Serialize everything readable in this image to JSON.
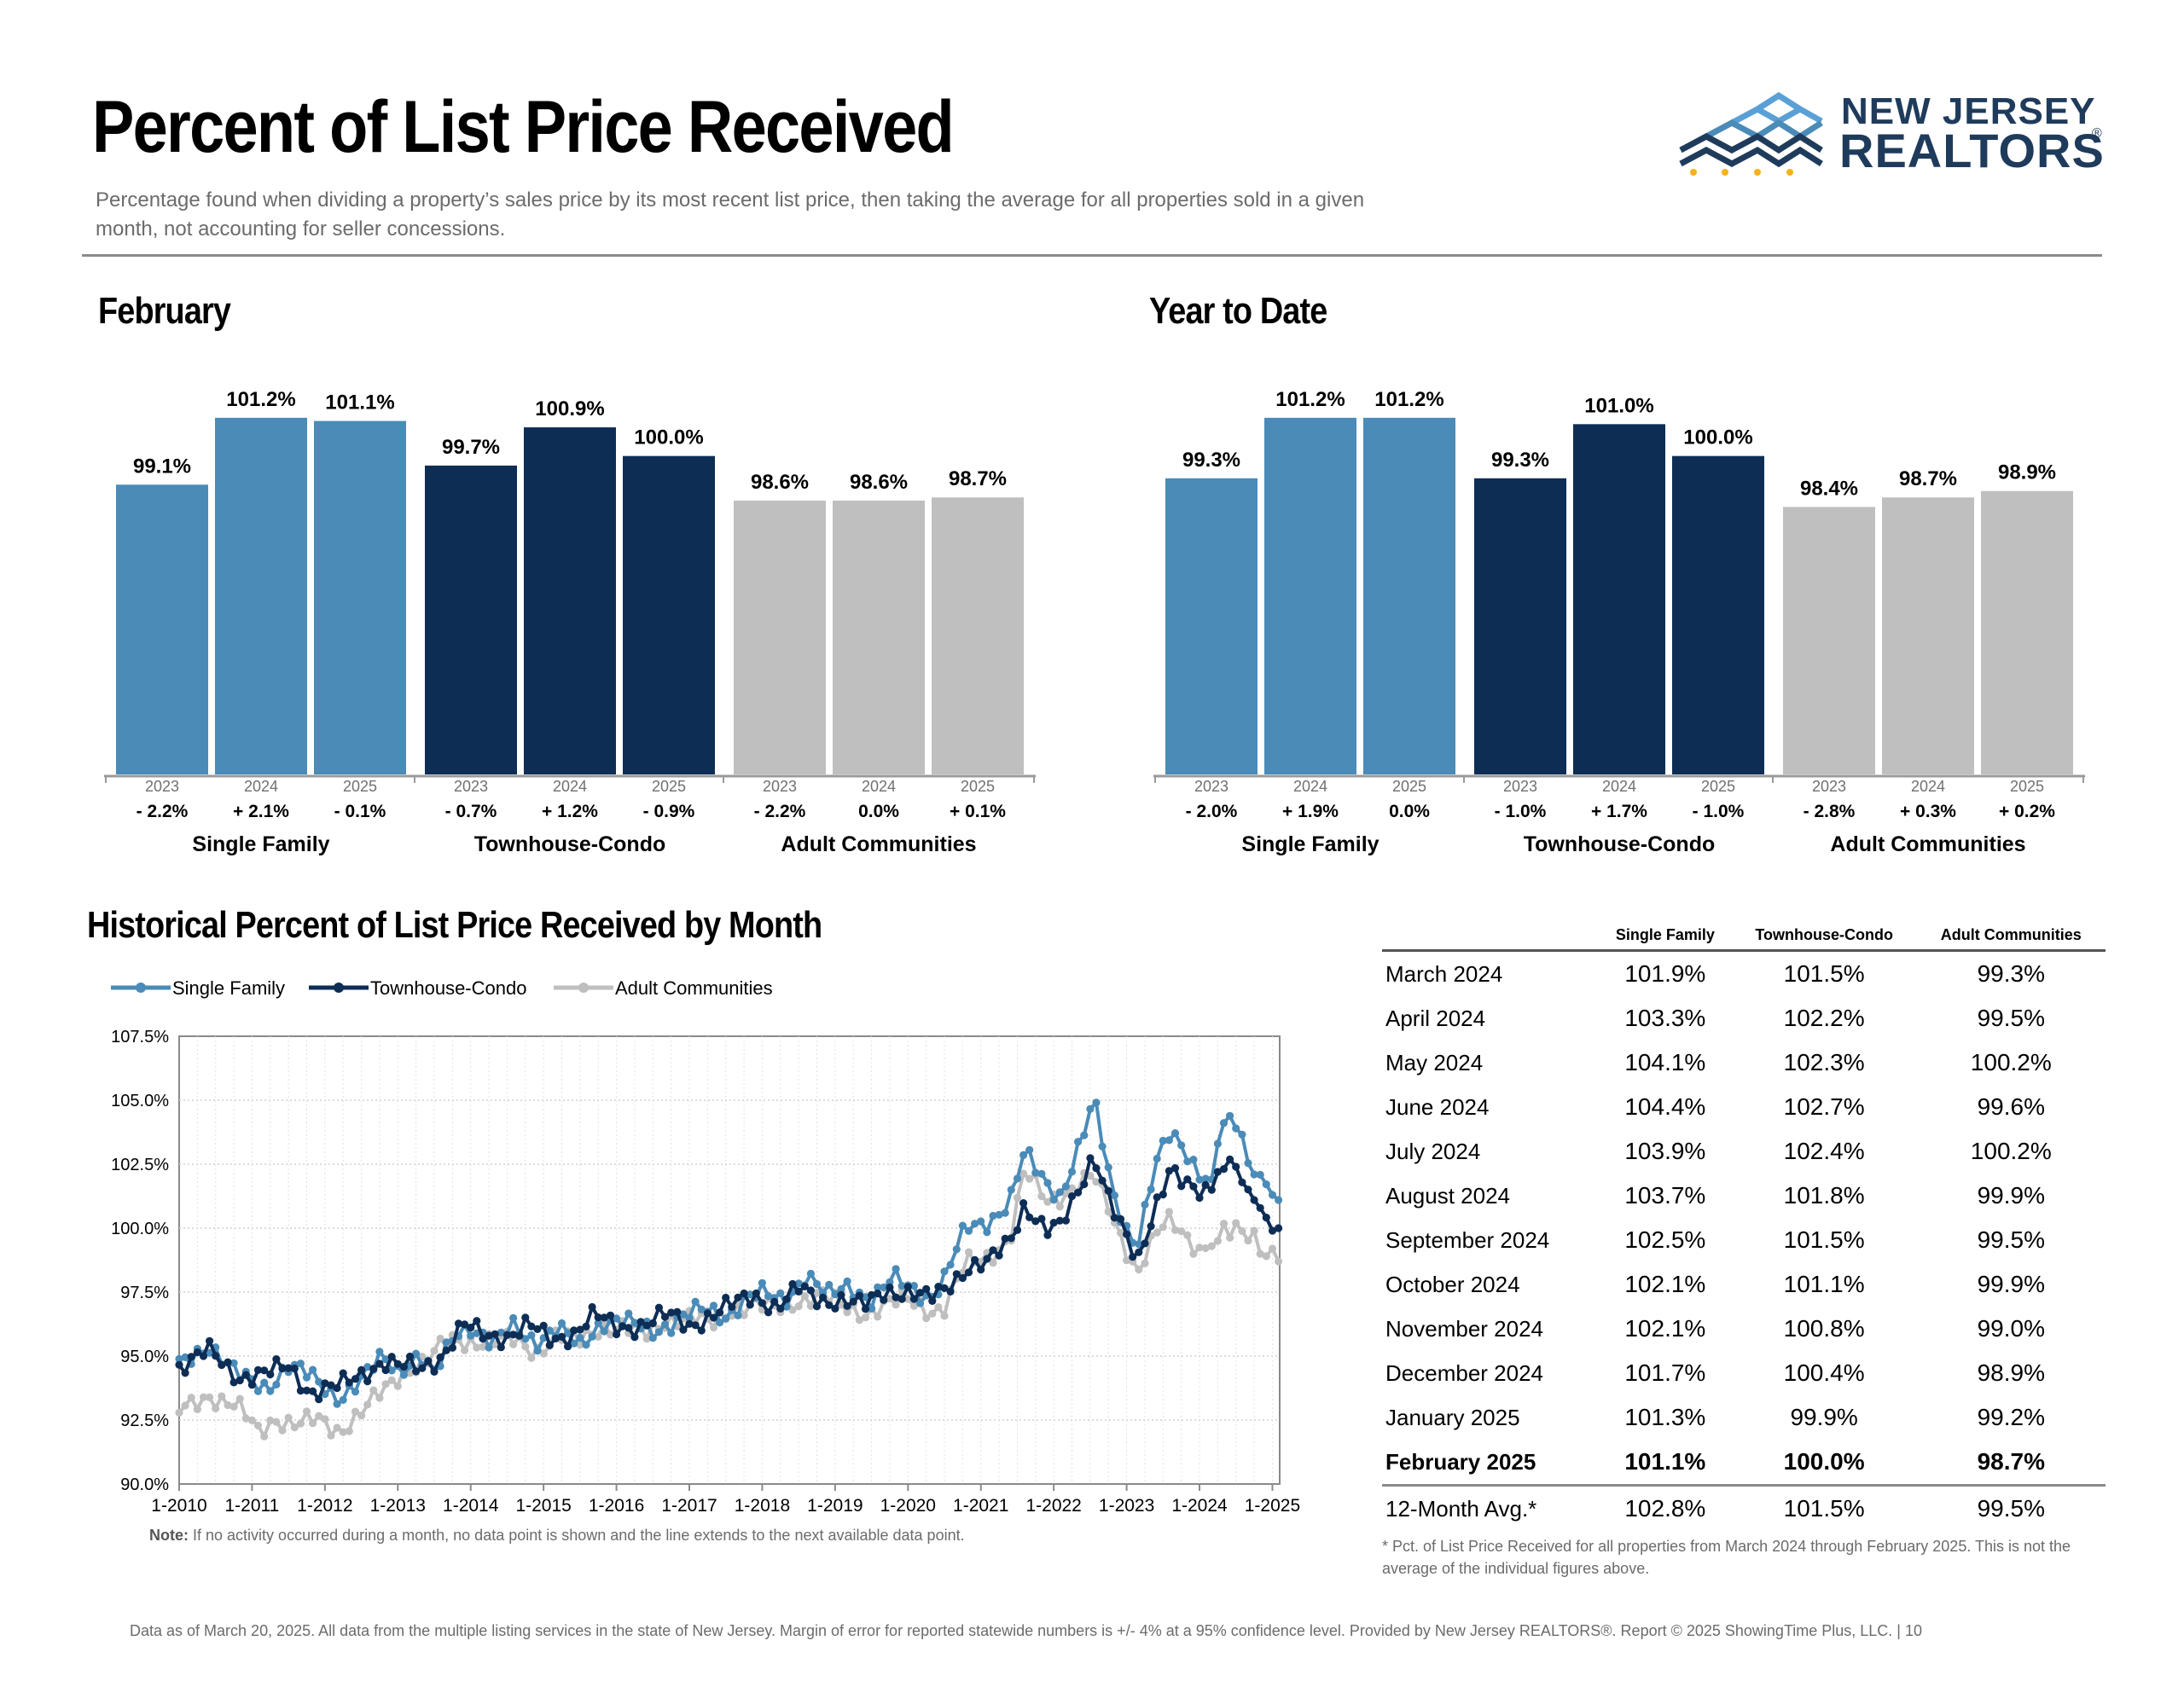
{
  "header": {
    "title": "Percent of List Price Received",
    "subtitle": "Percentage found when dividing a property’s sales price by its most recent list price, then taking the average for all properties sold in a given month, not accounting for seller concessions.",
    "logo_line1": "NEW JERSEY",
    "logo_line2": "REALTORS",
    "logo_reg": "®"
  },
  "colors": {
    "single_family": "#4a8bb8",
    "townhouse_condo": "#0d2d55",
    "adult_communities": "#bfbfbf"
  },
  "sections": {
    "february": "February",
    "ytd": "Year to Date",
    "historical": "Historical Percent of List Price Received by Month"
  },
  "chart_data": [
    {
      "type": "bar",
      "title": "February",
      "ylim": [
        90,
        102
      ],
      "groups": [
        {
          "name": "Single Family",
          "years": [
            "2023",
            "2024",
            "2025"
          ],
          "values": [
            99.1,
            101.2,
            101.1
          ],
          "labels": [
            "99.1%",
            "101.2%",
            "101.1%"
          ],
          "changes": [
            "- 2.2%",
            "+ 2.1%",
            "- 0.1%"
          ]
        },
        {
          "name": "Townhouse-Condo",
          "years": [
            "2023",
            "2024",
            "2025"
          ],
          "values": [
            99.7,
            100.9,
            100.0
          ],
          "labels": [
            "99.7%",
            "100.9%",
            "100.0%"
          ],
          "changes": [
            "- 0.7%",
            "+ 1.2%",
            "- 0.9%"
          ]
        },
        {
          "name": "Adult Communities",
          "years": [
            "2023",
            "2024",
            "2025"
          ],
          "values": [
            98.6,
            98.6,
            98.7
          ],
          "labels": [
            "98.6%",
            "98.6%",
            "98.7%"
          ],
          "changes": [
            "- 2.2%",
            "0.0%",
            "+ 0.1%"
          ]
        }
      ]
    },
    {
      "type": "bar",
      "title": "Year to Date",
      "ylim": [
        90,
        102
      ],
      "groups": [
        {
          "name": "Single Family",
          "years": [
            "2023",
            "2024",
            "2025"
          ],
          "values": [
            99.3,
            101.2,
            101.2
          ],
          "labels": [
            "99.3%",
            "101.2%",
            "101.2%"
          ],
          "changes": [
            "- 2.0%",
            "+ 1.9%",
            "0.0%"
          ]
        },
        {
          "name": "Townhouse-Condo",
          "years": [
            "2023",
            "2024",
            "2025"
          ],
          "values": [
            99.3,
            101.0,
            100.0
          ],
          "labels": [
            "99.3%",
            "101.0%",
            "100.0%"
          ],
          "changes": [
            "- 1.0%",
            "+ 1.7%",
            "- 1.0%"
          ]
        },
        {
          "name": "Adult Communities",
          "years": [
            "2023",
            "2024",
            "2025"
          ],
          "values": [
            98.4,
            98.7,
            98.9
          ],
          "labels": [
            "98.4%",
            "98.7%",
            "98.9%"
          ],
          "changes": [
            "- 2.8%",
            "+ 0.3%",
            "+ 0.2%"
          ]
        }
      ]
    },
    {
      "type": "line",
      "title": "Historical Percent of List Price Received by Month",
      "x_ticks": [
        "1-2010",
        "1-2011",
        "1-2012",
        "1-2013",
        "1-2014",
        "1-2015",
        "1-2016",
        "1-2017",
        "1-2018",
        "1-2019",
        "1-2020",
        "1-2021",
        "1-2022",
        "1-2023",
        "1-2024",
        "1-2025"
      ],
      "y_ticks": [
        "90.0%",
        "92.5%",
        "95.0%",
        "97.5%",
        "100.0%",
        "102.5%",
        "105.0%",
        "107.5%"
      ],
      "ylim": [
        90.0,
        107.5
      ],
      "x_start": "2010-01",
      "x_end": "2025-02",
      "legend_position": "top-left",
      "grid": true,
      "series": [
        {
          "name": "Single Family",
          "anchors": [
            [
              2010.0,
              94.6
            ],
            [
              2010.4,
              95.5
            ],
            [
              2010.8,
              94.2
            ],
            [
              2011.2,
              93.8
            ],
            [
              2011.5,
              94.6
            ],
            [
              2011.8,
              94.2
            ],
            [
              2012.2,
              93.4
            ],
            [
              2012.5,
              94.0
            ],
            [
              2012.8,
              95.0
            ],
            [
              2013.0,
              94.5
            ],
            [
              2013.3,
              95.0
            ],
            [
              2013.5,
              94.2
            ],
            [
              2013.8,
              96.0
            ],
            [
              2014.0,
              96.2
            ],
            [
              2014.3,
              95.4
            ],
            [
              2014.6,
              96.2
            ],
            [
              2014.9,
              95.6
            ],
            [
              2015.2,
              96.0
            ],
            [
              2015.5,
              95.4
            ],
            [
              2015.8,
              96.4
            ],
            [
              2016.1,
              96.3
            ],
            [
              2016.5,
              96.0
            ],
            [
              2016.9,
              96.5
            ],
            [
              2017.2,
              96.8
            ],
            [
              2017.5,
              96.6
            ],
            [
              2017.8,
              97.3
            ],
            [
              2018.0,
              97.4
            ],
            [
              2018.3,
              97.2
            ],
            [
              2018.6,
              98.2
            ],
            [
              2018.9,
              97.3
            ],
            [
              2019.2,
              97.8
            ],
            [
              2019.5,
              97.2
            ],
            [
              2019.8,
              98.0
            ],
            [
              2020.1,
              97.6
            ],
            [
              2020.3,
              97.3
            ],
            [
              2020.5,
              98.0
            ],
            [
              2020.8,
              100.0
            ],
            [
              2021.1,
              100.3
            ],
            [
              2021.4,
              101.0
            ],
            [
              2021.6,
              102.9
            ],
            [
              2021.9,
              101.8
            ],
            [
              2022.1,
              101.3
            ],
            [
              2022.4,
              103.5
            ],
            [
              2022.55,
              105.0
            ],
            [
              2022.8,
              101.6
            ],
            [
              2023.0,
              100.0
            ],
            [
              2023.15,
              99.3
            ],
            [
              2023.4,
              102.4
            ],
            [
              2023.6,
              103.8
            ],
            [
              2023.8,
              103.2
            ],
            [
              2024.0,
              102.1
            ],
            [
              2024.17,
              101.9
            ],
            [
              2024.25,
              103.3
            ],
            [
              2024.33,
              104.1
            ],
            [
              2024.42,
              104.4
            ],
            [
              2024.5,
              103.9
            ],
            [
              2024.58,
              103.7
            ],
            [
              2024.67,
              102.5
            ],
            [
              2024.75,
              102.1
            ],
            [
              2024.83,
              102.1
            ],
            [
              2024.92,
              101.7
            ],
            [
              2025.0,
              101.3
            ],
            [
              2025.08,
              101.1
            ]
          ]
        },
        {
          "name": "Townhouse-Condo",
          "anchors": [
            [
              2010.0,
              94.6
            ],
            [
              2010.4,
              95.2
            ],
            [
              2010.8,
              94.2
            ],
            [
              2011.2,
              94.3
            ],
            [
              2011.5,
              94.6
            ],
            [
              2011.8,
              93.6
            ],
            [
              2012.2,
              93.8
            ],
            [
              2012.5,
              94.3
            ],
            [
              2012.8,
              94.8
            ],
            [
              2013.0,
              94.6
            ],
            [
              2013.3,
              94.5
            ],
            [
              2013.6,
              95.0
            ],
            [
              2013.9,
              96.2
            ],
            [
              2014.2,
              95.8
            ],
            [
              2014.5,
              95.8
            ],
            [
              2014.8,
              96.2
            ],
            [
              2015.1,
              95.6
            ],
            [
              2015.4,
              95.9
            ],
            [
              2015.7,
              96.6
            ],
            [
              2016.0,
              96.1
            ],
            [
              2016.3,
              96.2
            ],
            [
              2016.7,
              96.6
            ],
            [
              2017.0,
              96.2
            ],
            [
              2017.3,
              96.6
            ],
            [
              2017.6,
              97.0
            ],
            [
              2017.9,
              97.4
            ],
            [
              2018.2,
              96.9
            ],
            [
              2018.5,
              97.6
            ],
            [
              2018.8,
              97.2
            ],
            [
              2019.1,
              97.2
            ],
            [
              2019.4,
              96.9
            ],
            [
              2019.7,
              97.6
            ],
            [
              2020.0,
              97.5
            ],
            [
              2020.3,
              97.2
            ],
            [
              2020.5,
              97.6
            ],
            [
              2020.8,
              98.5
            ],
            [
              2021.1,
              98.6
            ],
            [
              2021.4,
              99.5
            ],
            [
              2021.6,
              101.0
            ],
            [
              2021.9,
              99.9
            ],
            [
              2022.1,
              100.0
            ],
            [
              2022.4,
              101.9
            ],
            [
              2022.55,
              103.0
            ],
            [
              2022.8,
              100.8
            ],
            [
              2023.0,
              99.5
            ],
            [
              2023.15,
              98.6
            ],
            [
              2023.4,
              101.0
            ],
            [
              2023.6,
              102.4
            ],
            [
              2023.8,
              101.6
            ],
            [
              2024.0,
              101.3
            ],
            [
              2024.17,
              101.5
            ],
            [
              2024.25,
              102.2
            ],
            [
              2024.33,
              102.3
            ],
            [
              2024.42,
              102.7
            ],
            [
              2024.5,
              102.4
            ],
            [
              2024.58,
              101.8
            ],
            [
              2024.67,
              101.5
            ],
            [
              2024.75,
              101.1
            ],
            [
              2024.83,
              100.8
            ],
            [
              2024.92,
              100.4
            ],
            [
              2025.0,
              99.9
            ],
            [
              2025.08,
              100.0
            ]
          ]
        },
        {
          "name": "Adult Communities",
          "anchors": [
            [
              2010.0,
              92.8
            ],
            [
              2010.4,
              93.5
            ],
            [
              2010.8,
              93.0
            ],
            [
              2011.1,
              92.0
            ],
            [
              2011.3,
              92.6
            ],
            [
              2011.6,
              92.3
            ],
            [
              2011.9,
              92.5
            ],
            [
              2012.2,
              92.1
            ],
            [
              2012.5,
              92.8
            ],
            [
              2012.8,
              93.6
            ],
            [
              2013.1,
              94.5
            ],
            [
              2013.4,
              94.8
            ],
            [
              2013.7,
              95.6
            ],
            [
              2014.0,
              95.6
            ],
            [
              2014.3,
              95.6
            ],
            [
              2014.6,
              95.6
            ],
            [
              2014.9,
              95.2
            ],
            [
              2015.2,
              95.8
            ],
            [
              2015.5,
              95.6
            ],
            [
              2015.8,
              96.2
            ],
            [
              2016.1,
              96.1
            ],
            [
              2016.4,
              95.8
            ],
            [
              2016.7,
              96.5
            ],
            [
              2017.0,
              96.5
            ],
            [
              2017.3,
              96.2
            ],
            [
              2017.6,
              96.9
            ],
            [
              2017.9,
              97.0
            ],
            [
              2018.2,
              96.8
            ],
            [
              2018.5,
              97.2
            ],
            [
              2018.8,
              97.4
            ],
            [
              2019.1,
              96.9
            ],
            [
              2019.4,
              96.7
            ],
            [
              2019.7,
              97.0
            ],
            [
              2020.0,
              97.2
            ],
            [
              2020.3,
              96.8
            ],
            [
              2020.5,
              96.9
            ],
            [
              2020.8,
              98.6
            ],
            [
              2021.1,
              98.9
            ],
            [
              2021.4,
              99.6
            ],
            [
              2021.6,
              102.2
            ],
            [
              2021.9,
              101.1
            ],
            [
              2022.1,
              101.3
            ],
            [
              2022.4,
              101.8
            ],
            [
              2022.55,
              102.0
            ],
            [
              2022.8,
              100.5
            ],
            [
              2023.0,
              99.2
            ],
            [
              2023.15,
              98.3
            ],
            [
              2023.4,
              99.7
            ],
            [
              2023.6,
              100.3
            ],
            [
              2023.8,
              99.8
            ],
            [
              2024.0,
              99.2
            ],
            [
              2024.17,
              99.3
            ],
            [
              2024.25,
              99.5
            ],
            [
              2024.33,
              100.2
            ],
            [
              2024.42,
              99.6
            ],
            [
              2024.5,
              100.2
            ],
            [
              2024.58,
              99.9
            ],
            [
              2024.67,
              99.5
            ],
            [
              2024.75,
              99.9
            ],
            [
              2024.83,
              99.0
            ],
            [
              2024.92,
              98.9
            ],
            [
              2025.0,
              99.2
            ],
            [
              2025.08,
              98.7
            ]
          ]
        }
      ]
    }
  ],
  "table": {
    "headers": [
      "",
      "Single Family",
      "Townhouse-Condo",
      "Adult Communities"
    ],
    "rows": [
      [
        "March 2024",
        "101.9%",
        "101.5%",
        "99.3%"
      ],
      [
        "April 2024",
        "103.3%",
        "102.2%",
        "99.5%"
      ],
      [
        "May 2024",
        "104.1%",
        "102.3%",
        "100.2%"
      ],
      [
        "June 2024",
        "104.4%",
        "102.7%",
        "99.6%"
      ],
      [
        "July 2024",
        "103.9%",
        "102.4%",
        "100.2%"
      ],
      [
        "August 2024",
        "103.7%",
        "101.8%",
        "99.9%"
      ],
      [
        "September 2024",
        "102.5%",
        "101.5%",
        "99.5%"
      ],
      [
        "October 2024",
        "102.1%",
        "101.1%",
        "99.9%"
      ],
      [
        "November 2024",
        "102.1%",
        "100.8%",
        "99.0%"
      ],
      [
        "December 2024",
        "101.7%",
        "100.4%",
        "98.9%"
      ],
      [
        "January 2025",
        "101.3%",
        "99.9%",
        "99.2%"
      ],
      [
        "February 2025",
        "101.1%",
        "100.0%",
        "98.7%"
      ],
      [
        "12-Month Avg.*",
        "102.8%",
        "101.5%",
        "99.5%"
      ]
    ],
    "note": "* Pct. of List Price Received for all properties from March 2024 through February 2025. This is not the average of the individual figures above."
  },
  "hist_note_label": "Note:",
  "hist_note": "If no activity occurred during a month, no data point is shown and the line extends to the next available data point.",
  "footer": "Data as of March 20, 2025. All data from the multiple listing services in the state of New Jersey. Margin of error for reported statewide numbers is +/- 4% at a 95% confidence level. Provided by New Jersey REALTORS®. Report © 2025 ShowingTime Plus, LLC. |  10"
}
